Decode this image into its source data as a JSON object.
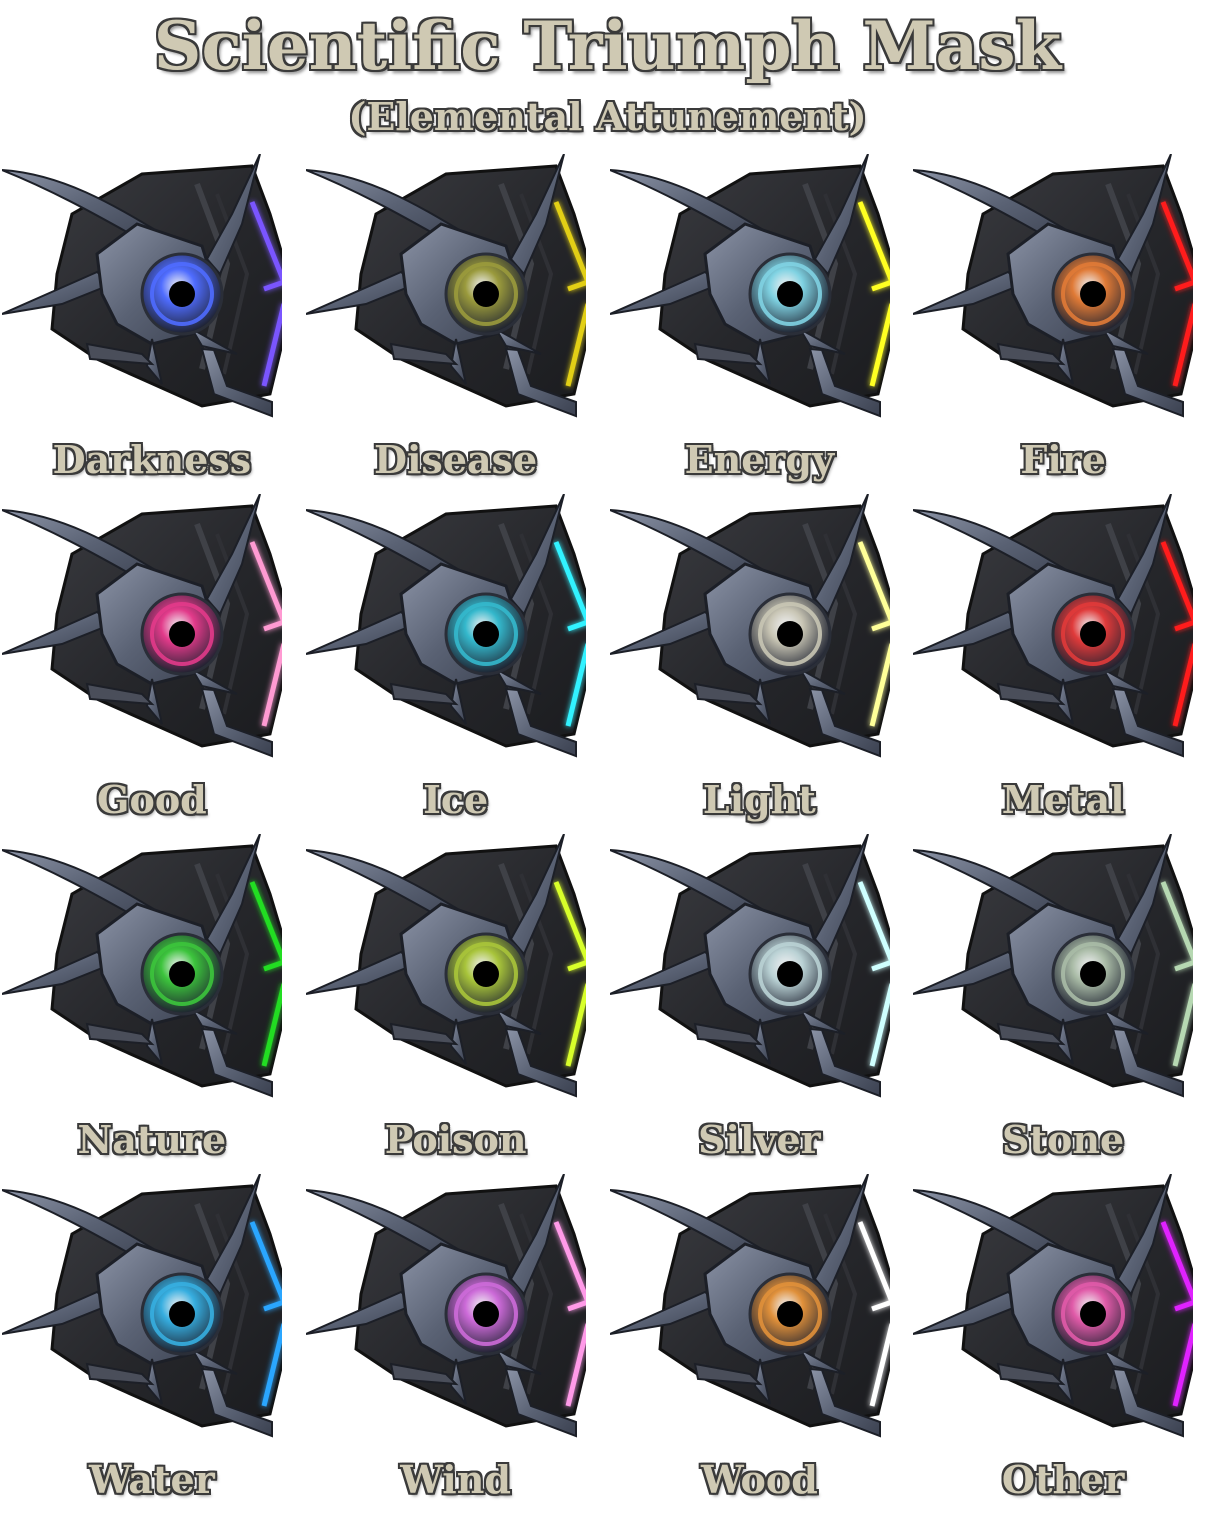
{
  "header": {
    "title": "Scientific Triumph Mask",
    "subtitle": "(Elemental Attunement)"
  },
  "variants": [
    {
      "label": "Darkness",
      "glow": "#7a55ff",
      "eye": "#4f6cff"
    },
    {
      "label": "Disease",
      "glow": "#e2cf12",
      "eye": "#9a9a3c"
    },
    {
      "label": "Energy",
      "glow": "#ffff22",
      "eye": "#7fd2e2"
    },
    {
      "label": "Fire",
      "glow": "#ff1e1e",
      "eye": "#e07a36"
    },
    {
      "label": "Good",
      "glow": "#ff9ad2",
      "eye": "#e23a8a"
    },
    {
      "label": "Ice",
      "glow": "#30f2ff",
      "eye": "#34b8cc"
    },
    {
      "label": "Light",
      "glow": "#ffff99",
      "eye": "#c8c5b4"
    },
    {
      "label": "Metal",
      "glow": "#ff1a1a",
      "eye": "#e03a3a"
    },
    {
      "label": "Nature",
      "glow": "#22dd22",
      "eye": "#3cc43c"
    },
    {
      "label": "Poison",
      "glow": "#d8ff2a",
      "eye": "#a8c43a"
    },
    {
      "label": "Silver",
      "glow": "#cfffff",
      "eye": "#b9d1d4"
    },
    {
      "label": "Stone",
      "glow": "#b6d8b2",
      "eye": "#a9bba6"
    },
    {
      "label": "Water",
      "glow": "#2aa6ff",
      "eye": "#36aee0"
    },
    {
      "label": "Wind",
      "glow": "#ff9ae8",
      "eye": "#cc6ad8"
    },
    {
      "label": "Wood",
      "glow": "#ffffff",
      "eye": "#e0903a"
    },
    {
      "label": "Other",
      "glow": "#e020ff",
      "eye": "#e05aa8"
    }
  ]
}
